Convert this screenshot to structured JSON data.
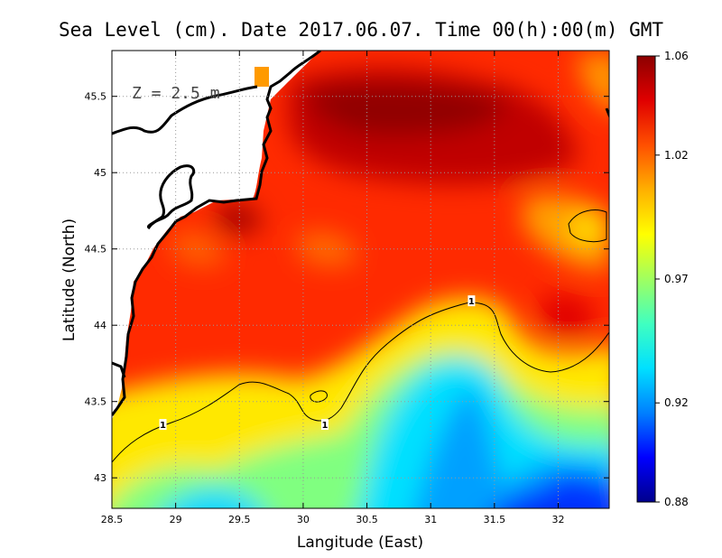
{
  "chart_data": {
    "type": "heatmap",
    "title": "Sea Level (cm). Date 2017.06.07. Time 00(h):00(m) GMT",
    "xlabel": "Langitude (East)",
    "ylabel": "Latitude (North)",
    "xlim": [
      28.5,
      32.4
    ],
    "ylim": [
      42.8,
      45.8
    ],
    "xticks": [
      "28.5",
      "29",
      "29.5",
      "30",
      "30.5",
      "31",
      "31.5",
      "32"
    ],
    "xtick_values": [
      28.5,
      29,
      29.5,
      30,
      30.5,
      31,
      31.5,
      32
    ],
    "yticks": [
      "43",
      "43.5",
      "44",
      "44.5",
      "45",
      "45.5"
    ],
    "ytick_values": [
      43,
      43.5,
      44,
      44.5,
      45,
      45.5
    ],
    "grid": true,
    "annotation": "Z = 2.5 m",
    "colorbar": {
      "min": 0.88,
      "max": 1.06,
      "ticks": [
        "1.06",
        "1.02",
        "0.97",
        "0.92",
        "0.88"
      ],
      "tick_values": [
        1.06,
        1.02,
        0.97,
        0.92,
        0.88
      ],
      "colors": [
        "#00008c",
        "#0000ff",
        "#0080ff",
        "#00e0ff",
        "#40ffc0",
        "#a0ff60",
        "#ffff00",
        "#ffb000",
        "#ff5000",
        "#e00000",
        "#8c0000"
      ]
    },
    "contour": {
      "level": "1",
      "labels": [
        {
          "text": "1",
          "lon": 28.9,
          "lat": 43.35
        },
        {
          "text": "1",
          "lon": 30.17,
          "lat": 43.35
        },
        {
          "text": "1",
          "lon": 31.32,
          "lat": 44.16
        }
      ]
    },
    "land_color": "#ffffff",
    "coast_color": "#000000"
  }
}
